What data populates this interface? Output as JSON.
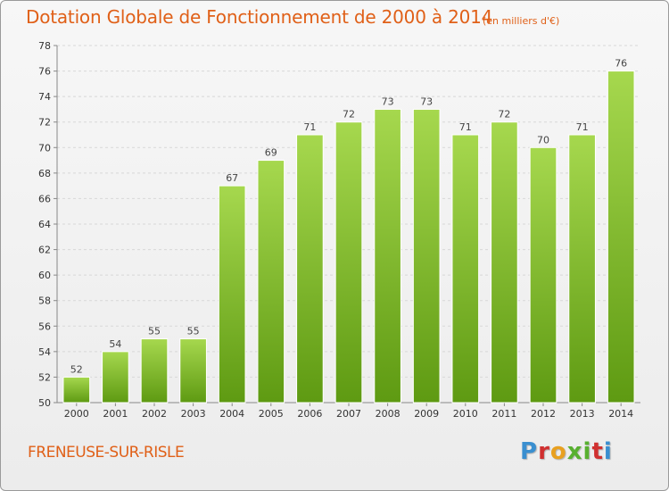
{
  "header": {
    "title": "Dotation Globale de Fonctionnement de 2000 à 2014",
    "subtitle": "(en milliers d'€)"
  },
  "footer": {
    "commune": "FRENEUSE-SUR-RISLE",
    "logo_text": "Proxiti"
  },
  "colors": {
    "bar_top": "#a6d84e",
    "bar_bottom": "#5e9a12",
    "title": "#e06018",
    "grid": "#d8d8d8"
  },
  "chart_data": {
    "type": "bar",
    "title": "Dotation Globale de Fonctionnement de 2000 à 2014",
    "subtitle": "(en milliers d'€)",
    "xlabel": "",
    "ylabel": "",
    "categories": [
      "2000",
      "2001",
      "2002",
      "2003",
      "2004",
      "2005",
      "2006",
      "2007",
      "2008",
      "2009",
      "2010",
      "2011",
      "2012",
      "2013",
      "2014"
    ],
    "values": [
      52,
      54,
      55,
      55,
      67,
      69,
      71,
      72,
      73,
      73,
      71,
      72,
      70,
      71,
      76
    ],
    "ylim": [
      50,
      78
    ],
    "yticks": [
      50,
      52,
      54,
      56,
      58,
      60,
      62,
      64,
      66,
      68,
      70,
      72,
      74,
      76,
      78
    ],
    "grid": true,
    "legend": "none"
  }
}
